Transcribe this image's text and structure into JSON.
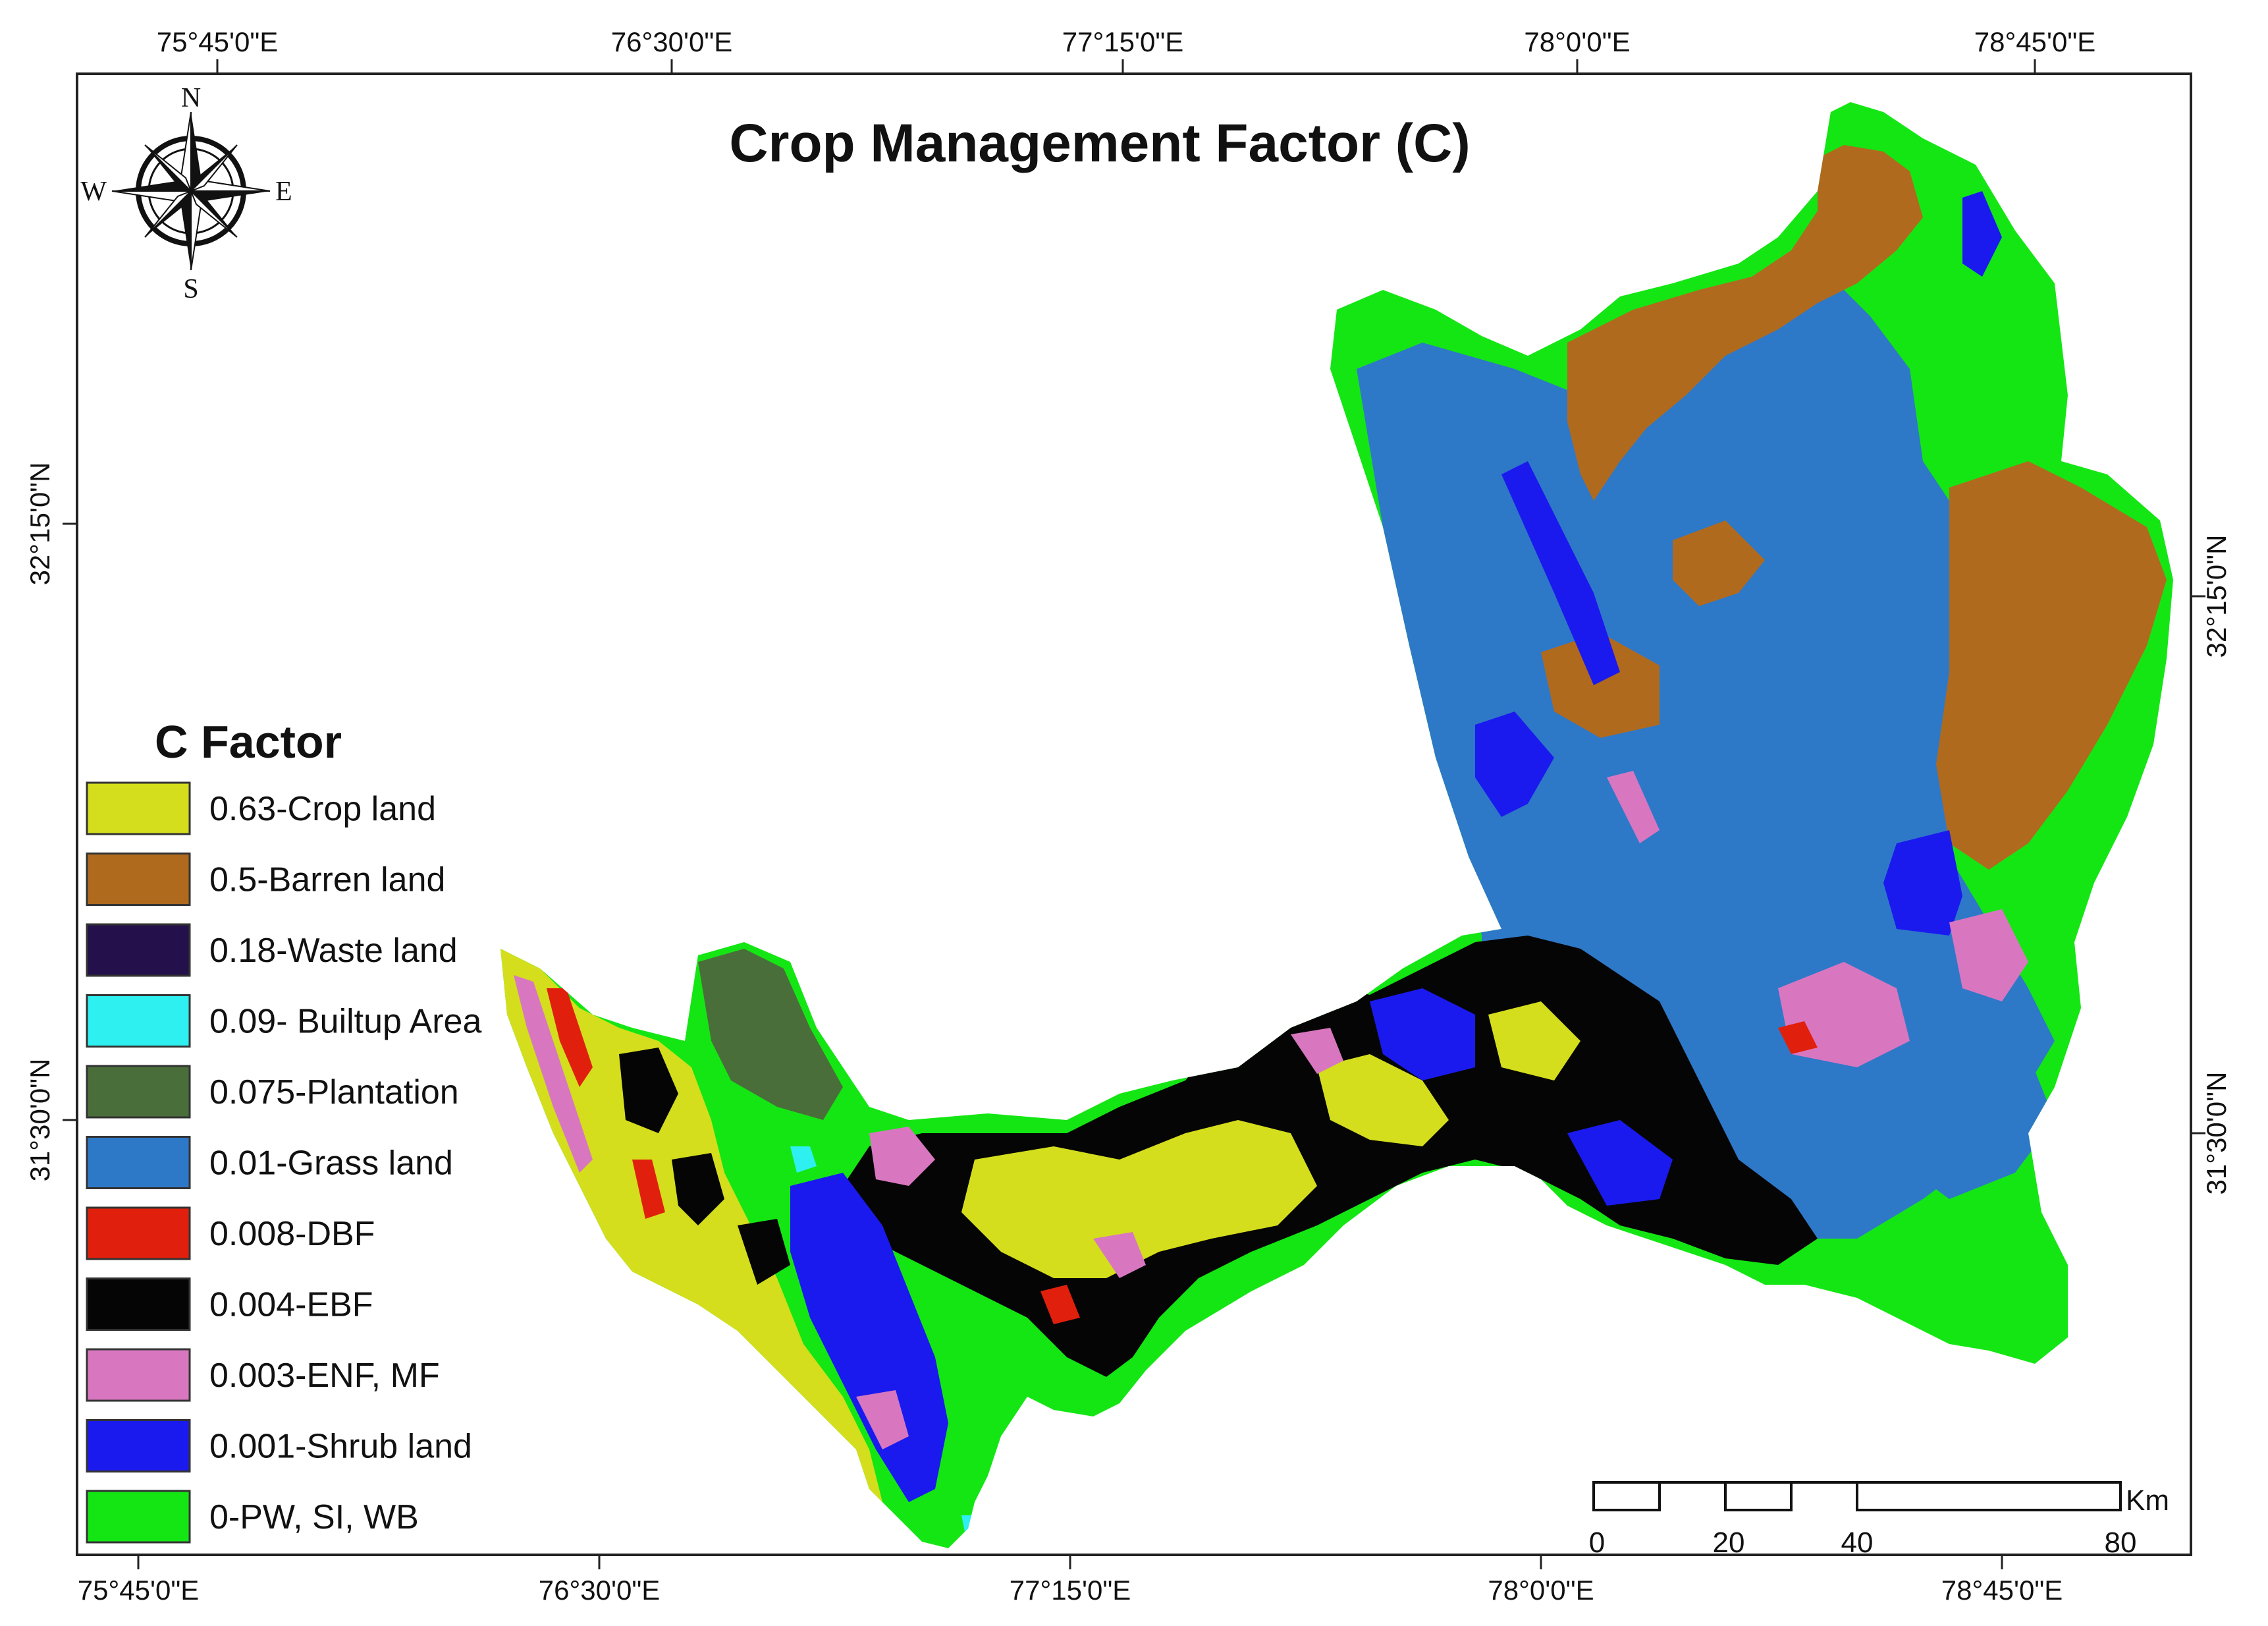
{
  "map": {
    "title": "Crop Management Factor (C)",
    "compass": {
      "n": "N",
      "s": "S",
      "e": "E",
      "w": "W",
      "icon": "compass-rose-icon"
    },
    "top_ticks": [
      "75°45'0\"E",
      "76°30'0\"E",
      "77°15'0\"E",
      "78°0'0\"E",
      "78°45'0\"E"
    ],
    "bottom_ticks": [
      "75°45'0\"E",
      "76°30'0\"E",
      "77°15'0\"E",
      "78°0'0\"E",
      "78°45'0\"E"
    ],
    "left_ticks": [
      "32°15'0\"N",
      "31°30'0\"N"
    ],
    "right_ticks": [
      "32°15'0\"N",
      "31°30'0\"N"
    ],
    "legend": {
      "title": "C Factor",
      "items": [
        {
          "label": "0.63-Crop land",
          "color": "#d4de1c"
        },
        {
          "label": "0.5-Barren land",
          "color": "#b06a1e"
        },
        {
          "label": "0.18-Waste land",
          "color": "#24104a"
        },
        {
          "label": "0.09- Builtup Area",
          "color": "#2ef0f0"
        },
        {
          "label": "0.075-Plantation",
          "color": "#4a6e3a"
        },
        {
          "label": "0.01-Grass land",
          "color": "#2e78c8"
        },
        {
          "label": "0.008-DBF",
          "color": "#e0200c"
        },
        {
          "label": "0.004-EBF",
          "color": "#050505"
        },
        {
          "label": "0.003-ENF, MF",
          "color": "#d877c0"
        },
        {
          "label": "0.001-Shrub land",
          "color": "#1a1aee"
        },
        {
          "label": "0-PW, SI, WB",
          "color": "#14e614"
        }
      ]
    },
    "scale_bar": {
      "unit": "Km",
      "labels": [
        "0",
        "20",
        "40",
        "80"
      ]
    }
  }
}
